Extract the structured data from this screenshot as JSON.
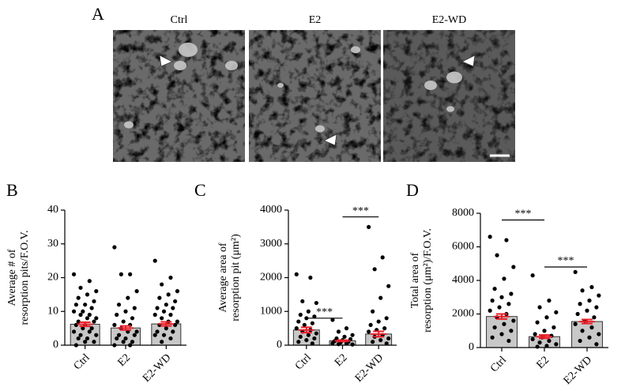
{
  "panel_a": {
    "label": "A",
    "images": [
      "Ctrl",
      "E2",
      "E2-WD"
    ]
  },
  "chart_data": [
    {
      "type": "bar",
      "panel": "B",
      "ylabel": [
        "Average # of",
        "resorption pits/F.O.V."
      ],
      "categories": [
        "Ctrl",
        "E2",
        "E2-WD"
      ],
      "values": [
        6.2,
        5.1,
        6.3
      ],
      "errors": [
        0.6,
        0.6,
        0.6
      ],
      "points": [
        [
          21,
          19,
          17,
          16,
          15,
          14,
          13,
          12,
          12,
          11,
          10,
          10,
          9,
          9,
          8,
          8,
          7,
          7,
          6,
          6,
          5,
          5,
          4,
          4,
          3,
          3,
          2,
          2,
          1,
          1,
          0
        ],
        [
          29,
          21,
          21,
          16,
          14,
          12,
          11,
          10,
          9,
          8,
          7,
          6,
          6,
          5,
          4,
          4,
          3,
          3,
          2,
          2,
          1,
          1,
          0,
          0
        ],
        [
          25,
          20,
          18,
          16,
          15,
          14,
          13,
          12,
          11,
          11,
          10,
          9,
          9,
          8,
          7,
          7,
          6,
          6,
          5,
          4,
          4,
          3,
          3,
          2,
          1
        ]
      ],
      "bar_color": "#c8c8c8",
      "error_color": "#e8202a",
      "ylim": [
        0,
        40
      ],
      "yticks": [
        0,
        10,
        20,
        30,
        40
      ],
      "significance": []
    },
    {
      "type": "bar",
      "panel": "C",
      "ylabel": [
        "Average area of",
        "resorption pit (μm²)"
      ],
      "categories": [
        "Ctrl",
        "E2",
        "E2-WD"
      ],
      "values": [
        450,
        130,
        330
      ],
      "errors": [
        80,
        20,
        80
      ],
      "points": [
        [
          2100,
          2000,
          1300,
          1250,
          1000,
          900,
          850,
          800,
          700,
          650,
          600,
          500,
          450,
          400,
          350,
          300,
          250,
          200,
          150,
          100,
          50
        ],
        [
          750,
          500,
          400,
          300,
          250,
          200,
          180,
          150,
          120,
          100,
          80,
          60,
          50,
          30,
          20
        ],
        [
          3500,
          2600,
          2250,
          1750,
          1400,
          1000,
          800,
          700,
          600,
          500,
          450,
          400,
          300,
          250,
          200,
          150,
          100,
          50
        ]
      ],
      "bar_color": "#c8c8c8",
      "error_color": "#e8202a",
      "ylim": [
        0,
        4000
      ],
      "yticks": [
        0,
        1000,
        2000,
        3000,
        4000
      ],
      "significance": [
        {
          "from": "Ctrl",
          "to": "E2",
          "y": 800,
          "label": "***"
        },
        {
          "from": "E2",
          "to": "E2-WD",
          "y": 3800,
          "label": "***"
        }
      ]
    },
    {
      "type": "bar",
      "panel": "D",
      "ylabel": [
        "Total area of",
        "resorption (μm²)/F.O.V."
      ],
      "categories": [
        "Ctrl",
        "E2",
        "E2-WD"
      ],
      "values": [
        1850,
        650,
        1550
      ],
      "errors": [
        150,
        100,
        120
      ],
      "points": [
        [
          6600,
          6400,
          5500,
          4800,
          4100,
          3500,
          3200,
          3000,
          2800,
          2600,
          2400,
          2200,
          2000,
          1800,
          1600,
          1400,
          1200,
          1000,
          800,
          600,
          400
        ],
        [
          4300,
          2800,
          2400,
          2100,
          1800,
          1500,
          1200,
          1000,
          800,
          700,
          600,
          500,
          400,
          300,
          200,
          100,
          50
        ],
        [
          4500,
          3600,
          3400,
          3100,
          2800,
          2600,
          2400,
          2200,
          2000,
          1800,
          1600,
          1400,
          1200,
          1000,
          800,
          600,
          400,
          200
        ]
      ],
      "bar_color": "#c8c8c8",
      "error_color": "#e8202a",
      "ylim": [
        0,
        8000
      ],
      "yticks": [
        0,
        2000,
        4000,
        6000,
        8000
      ],
      "significance": [
        {
          "from": "Ctrl",
          "to": "E2",
          "y": 7600,
          "label": "***"
        },
        {
          "from": "E2",
          "to": "E2-WD",
          "y": 4800,
          "label": "***"
        }
      ]
    }
  ]
}
